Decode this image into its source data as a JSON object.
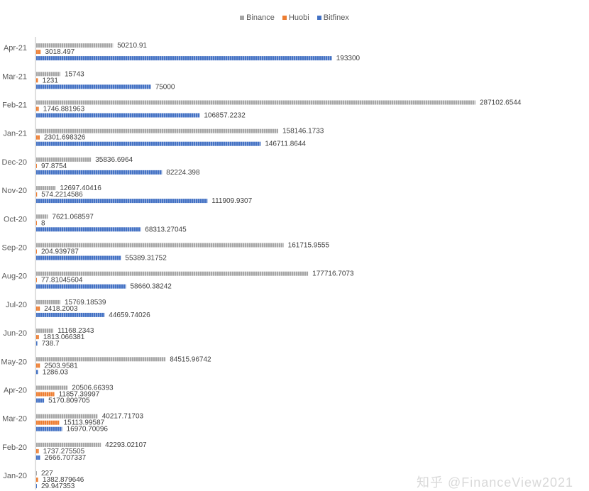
{
  "legend_position": "top",
  "watermark": "知乎 @FinanceView2021",
  "chart_data": {
    "type": "bar",
    "orientation": "horizontal",
    "categories": [
      "Apr-21",
      "Mar-21",
      "Feb-21",
      "Jan-21",
      "Dec-20",
      "Nov-20",
      "Oct-20",
      "Sep-20",
      "Aug-20",
      "Jul-20",
      "Jun-20",
      "May-20",
      "Apr-20",
      "Mar-20",
      "Feb-20",
      "Jan-20"
    ],
    "series": [
      {
        "name": "Binance",
        "color": "#a5a5a5",
        "values": [
          50210.91,
          15743,
          287102.6544,
          158146.1733,
          35836.6964,
          12697.40416,
          7621.068597,
          161715.9555,
          177716.7073,
          15769.18539,
          11168.2343,
          84515.96742,
          20506.66393,
          40217.71703,
          42293.02107,
          227
        ],
        "labels": [
          "50210.91",
          "15743",
          "287102.6544",
          "158146.1733",
          "35836.6964",
          "12697.40416",
          "7621.068597",
          "161715.9555",
          "177716.7073",
          "15769.18539",
          "11168.2343",
          "84515.96742",
          "20506.66393",
          "40217.71703",
          "42293.02107",
          "227"
        ]
      },
      {
        "name": "Huobi",
        "color": "#ed7d31",
        "values": [
          3018.497,
          1231,
          1746.881963,
          2301.698326,
          97.8754,
          574.2214586,
          8,
          204.939787,
          77.81045604,
          2418.2003,
          1813.066381,
          2503.9581,
          11857.39997,
          15113.99587,
          1737.275505,
          1382.879646
        ],
        "labels": [
          "3018.497",
          "1231",
          "1746.881963",
          "2301.698326",
          "97.8754",
          "574.2214586",
          "8",
          "204.939787",
          "77.81045604",
          "2418.2003",
          "1813.066381",
          "2503.9581",
          "11857.39997",
          "15113.99587",
          "1737.275505",
          "1382.879646"
        ]
      },
      {
        "name": "Bitfinex",
        "color": "#4472c4",
        "values": [
          193300,
          75000,
          106857.2232,
          146711.8644,
          82224.398,
          111909.9307,
          68313.27045,
          55389.31752,
          58660.38242,
          44659.74026,
          738.7,
          1286.03,
          5170.809705,
          16970.70096,
          2666.707337,
          29.947353
        ],
        "labels": [
          "193300",
          "75000",
          "106857.2232",
          "146711.8644",
          "82224.398",
          "111909.9307",
          "68313.27045",
          "55389.31752",
          "58660.38242",
          "44659.74026",
          "738.7",
          "1286.03",
          "5170.809705",
          "16970.70096",
          "2666.707337",
          "29.947353"
        ]
      }
    ],
    "xlim": [
      0,
      287102.6544
    ],
    "grid": false,
    "data_labels": true
  }
}
